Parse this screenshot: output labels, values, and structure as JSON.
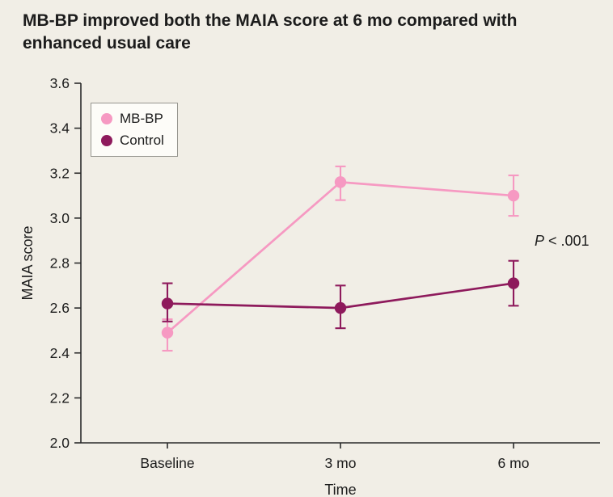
{
  "title": "MB-BP improved both the MAIA score at 6 mo compared with enhanced usual care",
  "annotation": {
    "var": "P",
    "rest": " < .001"
  },
  "legend": [
    {
      "label": "MB-BP",
      "color": "#f699c2"
    },
    {
      "label": "Control",
      "color": "#8e1a5c"
    }
  ],
  "colors": {
    "background": "#f1eee6",
    "axis": "#2a2a2a",
    "mbbp": "#f699c2",
    "control": "#8e1a5c"
  },
  "chart_data": {
    "type": "line",
    "title": "MB-BP improved both the MAIA score at 6 mo compared with enhanced usual care",
    "categories": [
      "Baseline",
      "3 mo",
      "6 mo"
    ],
    "series": [
      {
        "name": "MB-BP",
        "color": "#f699c2",
        "values": [
          2.49,
          3.16,
          3.1
        ],
        "err_low": [
          2.41,
          3.08,
          3.01
        ],
        "err_high": [
          2.55,
          3.23,
          3.19
        ]
      },
      {
        "name": "Control",
        "color": "#8e1a5c",
        "values": [
          2.62,
          2.6,
          2.71
        ],
        "err_low": [
          2.54,
          2.51,
          2.61
        ],
        "err_high": [
          2.71,
          2.7,
          2.81
        ]
      }
    ],
    "xlabel": "Time",
    "ylabel": "MAIA score",
    "ylim": [
      2.0,
      3.6
    ],
    "ytick_step": 0.2,
    "legend_position": "top-left",
    "grid": false,
    "annotation": "P < .001"
  }
}
